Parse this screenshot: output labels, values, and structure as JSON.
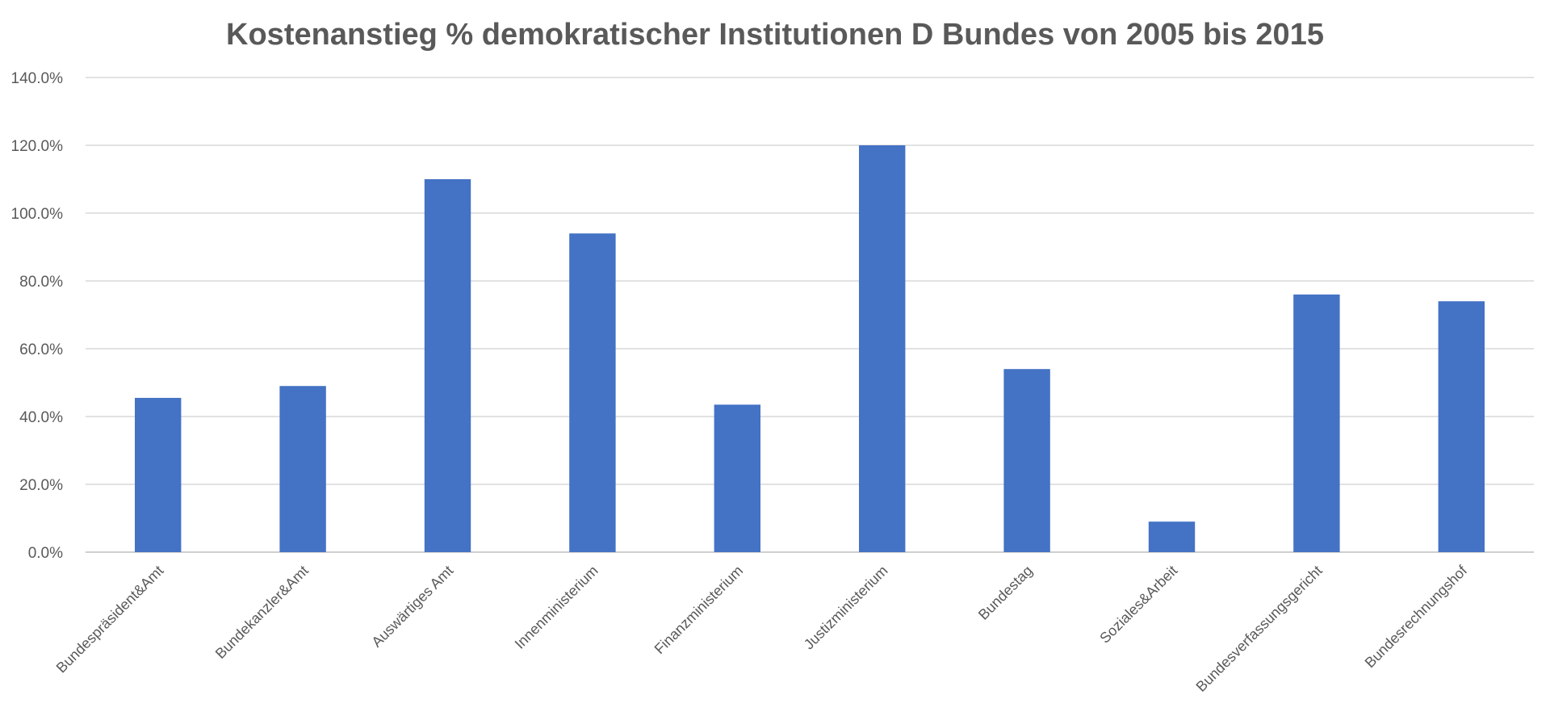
{
  "chart_data": {
    "type": "bar",
    "title": "Kostenanstieg %  demokratischer Institutionen D Bundes von 2005 bis 2015",
    "xlabel": "",
    "ylabel": "",
    "categories": [
      "Bundespräsident&Amt",
      "Bundekanzler&Amt",
      "Auswärtiges Amt",
      "Innenministerium",
      "Finanzministerium",
      "Justizministerium",
      "Bundestag",
      "Soziales&Arbeit",
      "Bundesverfassungsgericht",
      "Bundesrechnungshof"
    ],
    "values": [
      45.5,
      49,
      110,
      94,
      43.5,
      120,
      54,
      9,
      76,
      74
    ],
    "ylim": [
      0,
      140
    ],
    "yticks": [
      0,
      20,
      40,
      60,
      80,
      100,
      120,
      140
    ],
    "ytick_labels": [
      "0.0%",
      "20.0%",
      "40.0%",
      "60.0%",
      "80.0%",
      "100.0%",
      "120.0%",
      "140.0%"
    ],
    "grid": true,
    "legend": "none",
    "bar_color": "#4472C4"
  }
}
